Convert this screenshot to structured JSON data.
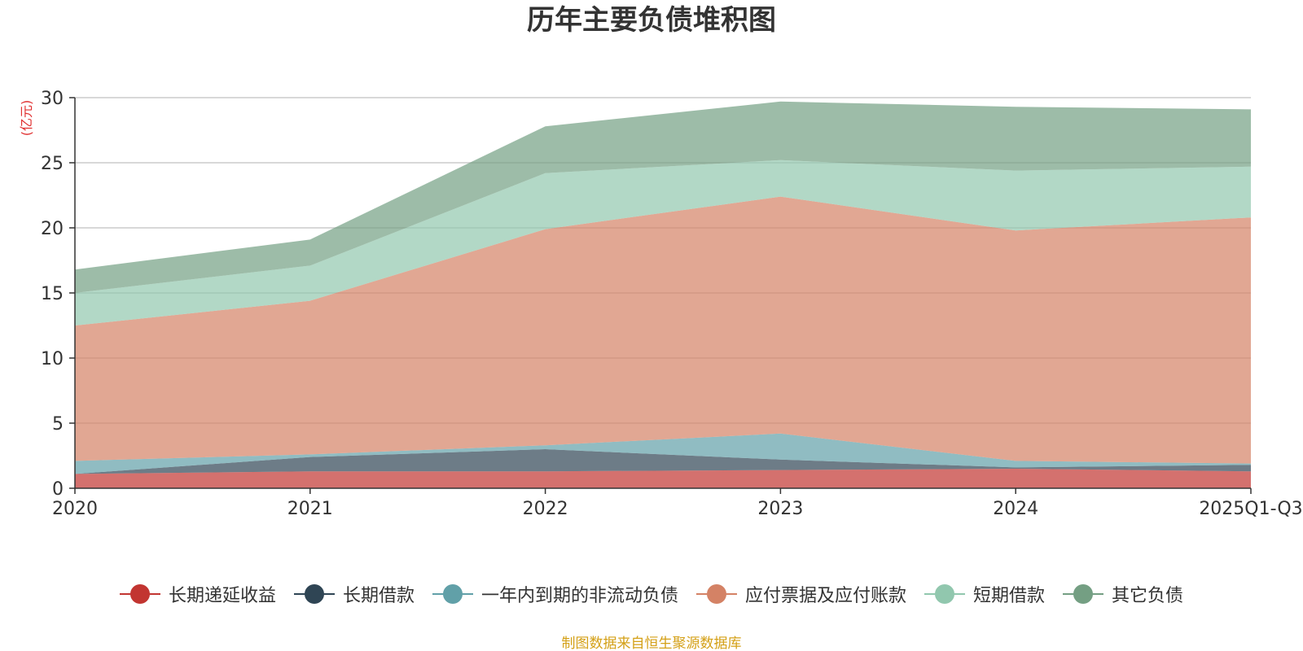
{
  "chart_data": {
    "type": "area",
    "stacked": true,
    "title": "历年主要负债堆积图",
    "unit": "(亿元)",
    "categories": [
      "2020",
      "2021",
      "2022",
      "2023",
      "2024",
      "2025Q1-Q3"
    ],
    "ylim": [
      0,
      30
    ],
    "yticks": [
      0,
      5,
      10,
      15,
      20,
      25,
      30
    ],
    "grid": true,
    "legend_position": "bottom",
    "series": [
      {
        "name": "长期递延收益",
        "color": "#c23531",
        "values": [
          1.1,
          1.3,
          1.3,
          1.4,
          1.5,
          1.3
        ]
      },
      {
        "name": "长期借款",
        "color": "#2f4554",
        "values": [
          0.0,
          1.1,
          1.7,
          0.8,
          0.1,
          0.5
        ]
      },
      {
        "name": "一年内到期的非流动负债",
        "color": "#61a0a8",
        "values": [
          1.0,
          0.2,
          0.3,
          2.0,
          0.5,
          0.1
        ]
      },
      {
        "name": "应付票据及应付账款",
        "color": "#d48265",
        "values": [
          10.4,
          11.8,
          16.6,
          18.2,
          17.7,
          18.9
        ]
      },
      {
        "name": "短期借款",
        "color": "#91c7ae",
        "values": [
          2.5,
          2.7,
          4.3,
          2.8,
          4.6,
          3.9
        ]
      },
      {
        "name": "其它负债",
        "color": "#749f83",
        "values": [
          1.8,
          2.0,
          3.6,
          4.5,
          4.9,
          4.4
        ]
      }
    ]
  },
  "source_text": "制图数据来自恒生聚源数据库"
}
